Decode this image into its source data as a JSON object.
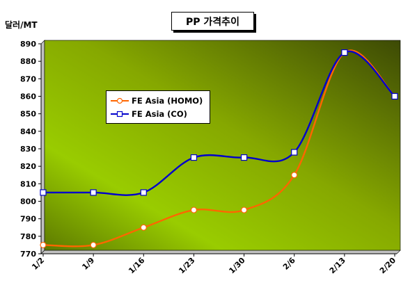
{
  "chart_data": {
    "type": "line",
    "title": "PP 가격추이",
    "ylabel": "달러/MT",
    "xlabel": "",
    "categories": [
      "1/2",
      "1/9",
      "1/16",
      "1/23",
      "1/30",
      "2/6",
      "2/13",
      "2/20"
    ],
    "ylim": [
      770,
      890
    ],
    "yticks": [
      770,
      780,
      790,
      800,
      810,
      820,
      830,
      840,
      850,
      860,
      870,
      880,
      890
    ],
    "grid": false,
    "legend_position": "upper-left inside plot",
    "series": [
      {
        "name": "FE Asia (HOMO)",
        "color": "#ff6600",
        "marker": "circle",
        "values": [
          775,
          775,
          785,
          795,
          795,
          815,
          885,
          860
        ]
      },
      {
        "name": "FE Asia (CO)",
        "color": "#0000cc",
        "marker": "square",
        "values": [
          805,
          805,
          805,
          825,
          825,
          828,
          885,
          860
        ]
      }
    ],
    "colors": {
      "plot_gradient_light": "#99cc00",
      "plot_gradient_dark": "#4a5a00"
    }
  }
}
